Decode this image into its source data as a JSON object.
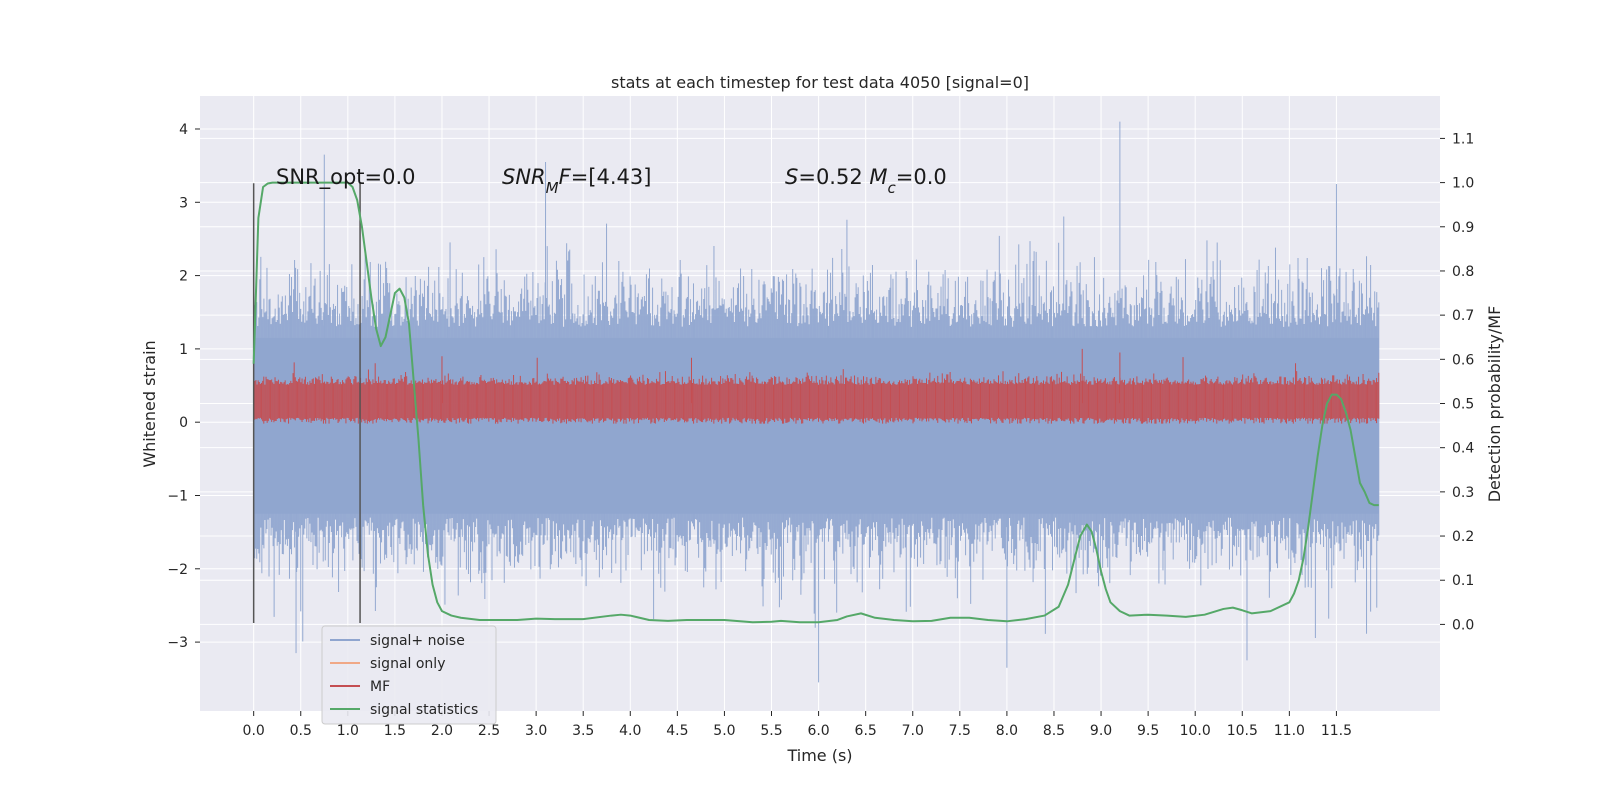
{
  "chart_data": {
    "type": "line",
    "title": "stats at each timestep for test data 4050 [signal=0]",
    "xlabel": "Time (s)",
    "ylabel": "Whitened strain",
    "y2label": "Detection probability/MF",
    "xlim": [
      -0.57,
      12.6
    ],
    "ylim": [
      -3.94,
      4.45
    ],
    "y2lim": [
      -0.196,
      1.196
    ],
    "xticks": [
      "0.0",
      "0.5",
      "1.0",
      "1.5",
      "2.0",
      "2.5",
      "3.0",
      "3.5",
      "4.0",
      "4.5",
      "5.0",
      "5.5",
      "6.0",
      "6.5",
      "7.0",
      "7.5",
      "8.0",
      "8.5",
      "9.0",
      "9.5",
      "10.0",
      "10.5",
      "11.0",
      "11.5"
    ],
    "yticks": [
      "−3",
      "−2",
      "−1",
      "0",
      "1",
      "2",
      "3",
      "4"
    ],
    "y2ticks": [
      "0.0",
      "0.1",
      "0.2",
      "0.3",
      "0.4",
      "0.5",
      "0.6",
      "0.7",
      "0.8",
      "0.9",
      "1.0",
      "1.1"
    ],
    "grid": true,
    "legend_position": "lower-left",
    "legend": [
      {
        "name": "signal+ noise",
        "color": "#8fa5cf"
      },
      {
        "name": "signal only",
        "color": "#f0a886"
      },
      {
        "name": "MF",
        "color": "#c44e52"
      },
      {
        "name": "signal statistics",
        "color": "#55a868"
      }
    ],
    "annotations": [
      {
        "label": "SNR_opt=0.0"
      },
      {
        "label_parts": [
          {
            "t": "SNR",
            "it": true
          },
          {
            "t": "M",
            "it": true,
            "sub": true
          },
          {
            "t": "F",
            "it": true
          },
          {
            "t": "=[4.43]"
          }
        ]
      },
      {
        "label_parts": [
          {
            "t": "S",
            "it": true
          },
          {
            "t": "=0.52   "
          },
          {
            "t": "M",
            "it": true
          },
          {
            "t": "c",
            "it": true,
            "sub": true
          },
          {
            "t": "=0.0"
          }
        ]
      }
    ],
    "window_markers": {
      "x": [
        0.0,
        1.13
      ],
      "y": [
        -2.74,
        3.26
      ]
    },
    "series": [
      {
        "name": "signal statistics",
        "axis": "right",
        "x": [
          0.0,
          0.05,
          0.1,
          0.15,
          0.2,
          0.3,
          0.4,
          0.5,
          0.6,
          0.7,
          0.8,
          0.9,
          1.0,
          1.05,
          1.1,
          1.15,
          1.2,
          1.25,
          1.3,
          1.35,
          1.4,
          1.45,
          1.5,
          1.55,
          1.6,
          1.65,
          1.7,
          1.75,
          1.8,
          1.85,
          1.9,
          1.95,
          2.0,
          2.1,
          2.2,
          2.4,
          2.6,
          2.8,
          3.0,
          3.2,
          3.5,
          3.8,
          3.9,
          4.0,
          4.2,
          4.4,
          4.6,
          5.0,
          5.3,
          5.5,
          5.6,
          5.8,
          6.0,
          6.2,
          6.3,
          6.45,
          6.6,
          6.8,
          7.0,
          7.2,
          7.4,
          7.6,
          7.8,
          8.0,
          8.2,
          8.4,
          8.55,
          8.65,
          8.72,
          8.78,
          8.85,
          8.9,
          8.95,
          9.0,
          9.05,
          9.1,
          9.2,
          9.3,
          9.5,
          9.7,
          9.9,
          10.1,
          10.3,
          10.4,
          10.5,
          10.6,
          10.8,
          11.0,
          11.05,
          11.1,
          11.15,
          11.2,
          11.25,
          11.3,
          11.35,
          11.4,
          11.45,
          11.5,
          11.55,
          11.6,
          11.65,
          11.7,
          11.75,
          11.8,
          11.85,
          11.9,
          11.95
        ],
        "y": [
          0.59,
          0.92,
          0.99,
          0.998,
          1.0,
          1.0,
          1.0,
          1.0,
          1.0,
          1.0,
          1.0,
          1.0,
          1.0,
          0.99,
          0.96,
          0.9,
          0.82,
          0.74,
          0.67,
          0.63,
          0.65,
          0.7,
          0.75,
          0.76,
          0.74,
          0.68,
          0.55,
          0.42,
          0.27,
          0.16,
          0.09,
          0.05,
          0.03,
          0.02,
          0.015,
          0.01,
          0.01,
          0.01,
          0.013,
          0.012,
          0.012,
          0.02,
          0.022,
          0.02,
          0.01,
          0.008,
          0.01,
          0.01,
          0.005,
          0.006,
          0.008,
          0.005,
          0.005,
          0.01,
          0.018,
          0.025,
          0.015,
          0.01,
          0.007,
          0.008,
          0.015,
          0.015,
          0.01,
          0.007,
          0.012,
          0.02,
          0.04,
          0.09,
          0.15,
          0.2,
          0.226,
          0.21,
          0.17,
          0.12,
          0.08,
          0.05,
          0.03,
          0.02,
          0.022,
          0.02,
          0.017,
          0.022,
          0.035,
          0.038,
          0.032,
          0.025,
          0.03,
          0.05,
          0.07,
          0.1,
          0.15,
          0.22,
          0.3,
          0.38,
          0.45,
          0.5,
          0.52,
          0.52,
          0.51,
          0.48,
          0.44,
          0.38,
          0.32,
          0.3,
          0.275,
          0.27,
          0.27
        ]
      },
      {
        "name": "MF",
        "axis": "left",
        "baseline": 0.26,
        "spread": 0.17,
        "max": 1.0,
        "min": -0.02
      },
      {
        "name": "signal+ noise",
        "axis": "left",
        "baseline": 0.0,
        "max": 4.1,
        "min": -3.55
      }
    ]
  }
}
